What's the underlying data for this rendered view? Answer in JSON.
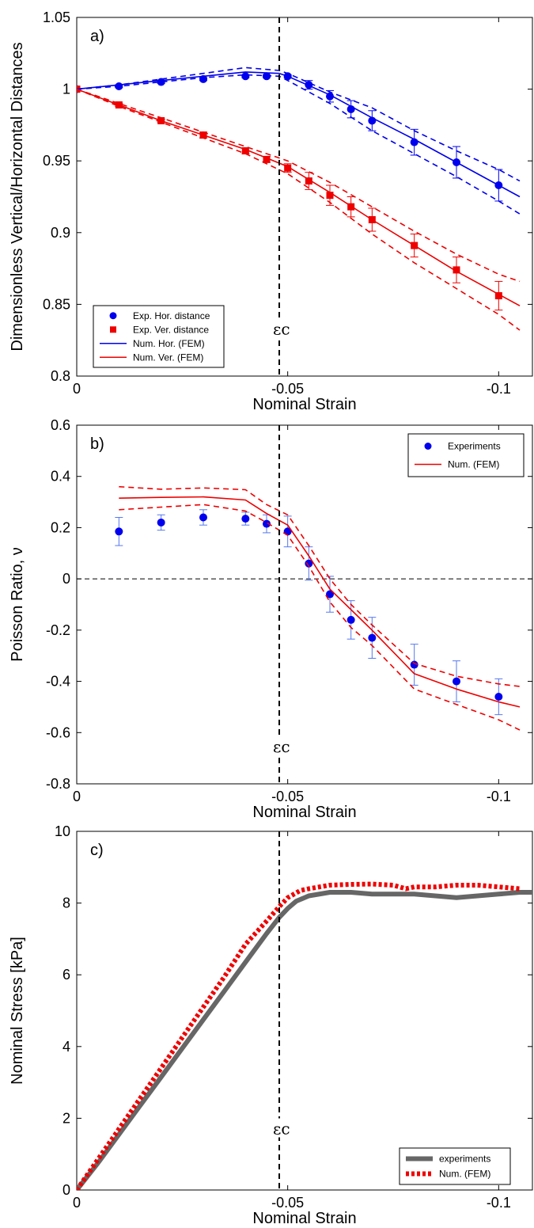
{
  "chart_data": [
    {
      "id": "a",
      "type": "line",
      "panel_label": "a)",
      "xlabel": "Nominal Strain",
      "ylabel": "Dimensionless Vertical/Horizontal Distances",
      "xlim": [
        0,
        -0.108
      ],
      "ylim": [
        0.8,
        1.05
      ],
      "x_ticks": [
        0,
        -0.05,
        -0.1
      ],
      "x_tick_labels": [
        "0",
        "-0.05",
        "-0.1"
      ],
      "y_ticks": [
        0.8,
        0.85,
        0.9,
        0.95,
        1.0,
        1.05
      ],
      "y_tick_labels": [
        "0.8",
        "0.85",
        "0.9",
        "0.95",
        "1",
        "1.05"
      ],
      "vline": {
        "x": -0.048,
        "label": "εc",
        "label_y": 0.83
      },
      "legend": {
        "placement": "bottom-left",
        "entries": [
          {
            "label": "Exp. Hor. distance",
            "color": "#0000ee",
            "kind": "circle"
          },
          {
            "label": "Exp. Ver. distance",
            "color": "#ee0000",
            "kind": "square"
          },
          {
            "label": "Num. Hor. (FEM)",
            "color": "#0000ee",
            "kind": "line"
          },
          {
            "label": "Num. Ver. (FEM)",
            "color": "#ee0000",
            "kind": "line"
          }
        ]
      },
      "series": [
        {
          "kind": "scatter",
          "marker": "circle",
          "color": "#0000ee",
          "x": [
            0,
            -0.01,
            -0.02,
            -0.03,
            -0.04,
            -0.045,
            -0.05,
            -0.055,
            -0.06,
            -0.065,
            -0.07,
            -0.08,
            -0.09,
            -0.1
          ],
          "y": [
            1.0,
            1.002,
            1.005,
            1.007,
            1.009,
            1.009,
            1.009,
            1.003,
            0.995,
            0.986,
            0.978,
            0.963,
            0.949,
            0.933
          ],
          "err": [
            0,
            0.001,
            0.001,
            0.001,
            0.001,
            0.001,
            0.001,
            0.003,
            0.004,
            0.006,
            0.007,
            0.009,
            0.011,
            0.011
          ]
        },
        {
          "kind": "scatter",
          "marker": "square",
          "color": "#ee0000",
          "x": [
            0,
            -0.01,
            -0.02,
            -0.03,
            -0.04,
            -0.045,
            -0.05,
            -0.055,
            -0.06,
            -0.065,
            -0.07,
            -0.08,
            -0.09,
            -0.1
          ],
          "y": [
            1.0,
            0.989,
            0.978,
            0.968,
            0.957,
            0.951,
            0.945,
            0.936,
            0.926,
            0.918,
            0.909,
            0.891,
            0.874,
            0.856
          ],
          "err": [
            0,
            0.001,
            0.001,
            0.002,
            0.002,
            0.002,
            0.003,
            0.006,
            0.007,
            0.007,
            0.008,
            0.008,
            0.009,
            0.01
          ]
        },
        {
          "kind": "line",
          "color": "#0000ee",
          "dash": false,
          "x": [
            0,
            -0.01,
            -0.02,
            -0.03,
            -0.04,
            -0.048,
            -0.05,
            -0.06,
            -0.07,
            -0.08,
            -0.09,
            -0.1,
            -0.105
          ],
          "y": [
            1.0,
            1.003,
            1.006,
            1.009,
            1.012,
            1.011,
            1.009,
            0.996,
            0.98,
            0.965,
            0.949,
            0.933,
            0.925
          ]
        },
        {
          "kind": "line",
          "color": "#0000ee",
          "dash": true,
          "x": [
            0,
            -0.01,
            -0.02,
            -0.03,
            -0.04,
            -0.048,
            -0.05,
            -0.06,
            -0.07,
            -0.08,
            -0.09,
            -0.1,
            -0.105
          ],
          "y": [
            1.0,
            1.003,
            1.007,
            1.011,
            1.015,
            1.013,
            1.011,
            0.998,
            0.987,
            0.971,
            0.957,
            0.944,
            0.936
          ]
        },
        {
          "kind": "line",
          "color": "#0000ee",
          "dash": true,
          "x": [
            0,
            -0.01,
            -0.02,
            -0.03,
            -0.04,
            -0.048,
            -0.05,
            -0.06,
            -0.07,
            -0.08,
            -0.09,
            -0.1,
            -0.105
          ],
          "y": [
            1.0,
            1.002,
            1.005,
            1.008,
            1.01,
            1.009,
            1.006,
            0.99,
            0.971,
            0.955,
            0.939,
            0.922,
            0.913
          ]
        },
        {
          "kind": "line",
          "color": "#ee0000",
          "dash": false,
          "x": [
            0,
            -0.01,
            -0.02,
            -0.03,
            -0.04,
            -0.05,
            -0.06,
            -0.07,
            -0.08,
            -0.09,
            -0.1,
            -0.105
          ],
          "y": [
            1.0,
            0.989,
            0.978,
            0.968,
            0.958,
            0.946,
            0.928,
            0.909,
            0.891,
            0.873,
            0.857,
            0.849
          ]
        },
        {
          "kind": "line",
          "color": "#ee0000",
          "dash": true,
          "x": [
            0,
            -0.01,
            -0.02,
            -0.03,
            -0.04,
            -0.05,
            -0.06,
            -0.07,
            -0.08,
            -0.09,
            -0.1,
            -0.105
          ],
          "y": [
            1.0,
            0.99,
            0.98,
            0.97,
            0.96,
            0.95,
            0.935,
            0.918,
            0.901,
            0.885,
            0.871,
            0.866
          ]
        },
        {
          "kind": "line",
          "color": "#ee0000",
          "dash": true,
          "x": [
            0,
            -0.01,
            -0.02,
            -0.03,
            -0.04,
            -0.05,
            -0.06,
            -0.07,
            -0.08,
            -0.09,
            -0.1,
            -0.105
          ],
          "y": [
            1.0,
            0.988,
            0.977,
            0.966,
            0.955,
            0.941,
            0.921,
            0.899,
            0.879,
            0.861,
            0.843,
            0.832
          ]
        }
      ]
    },
    {
      "id": "b",
      "type": "line",
      "panel_label": "b)",
      "xlabel": "Nominal Strain",
      "ylabel": "Poisson Ratio, ν",
      "xlim": [
        0,
        -0.108
      ],
      "ylim": [
        -0.8,
        0.6
      ],
      "x_ticks": [
        0,
        -0.05,
        -0.1
      ],
      "x_tick_labels": [
        "0",
        "-0.05",
        "-0.1"
      ],
      "y_ticks": [
        -0.8,
        -0.6,
        -0.4,
        -0.2,
        0,
        0.2,
        0.4,
        0.6
      ],
      "y_tick_labels": [
        "-0.8",
        "-0.6",
        "-0.4",
        "-0.2",
        "0",
        "0.2",
        "0.4",
        "0.6"
      ],
      "hline": {
        "y": 0
      },
      "vline": {
        "x": -0.048,
        "label": "εc",
        "label_y": -0.67
      },
      "legend": {
        "placement": "top-right",
        "entries": [
          {
            "label": "Experiments",
            "color": "#0000ee",
            "kind": "circle"
          },
          {
            "label": "Num. (FEM)",
            "color": "#ee0000",
            "kind": "line"
          }
        ]
      },
      "series": [
        {
          "kind": "scatter",
          "marker": "circle",
          "color": "#0000ee",
          "err_color": "#5577ee",
          "x": [
            -0.01,
            -0.02,
            -0.03,
            -0.04,
            -0.045,
            -0.05,
            -0.055,
            -0.06,
            -0.065,
            -0.07,
            -0.08,
            -0.09,
            -0.1
          ],
          "y": [
            0.185,
            0.22,
            0.24,
            0.235,
            0.215,
            0.185,
            0.06,
            -0.06,
            -0.16,
            -0.23,
            -0.335,
            -0.4,
            -0.46
          ],
          "err": [
            0.055,
            0.03,
            0.03,
            0.025,
            0.035,
            0.06,
            0.065,
            0.07,
            0.075,
            0.08,
            0.08,
            0.08,
            0.07
          ]
        },
        {
          "kind": "line",
          "color": "#ee0000",
          "dash": false,
          "x": [
            -0.01,
            -0.02,
            -0.03,
            -0.04,
            -0.045,
            -0.05,
            -0.055,
            -0.06,
            -0.065,
            -0.07,
            -0.08,
            -0.09,
            -0.1,
            -0.105
          ],
          "y": [
            0.315,
            0.318,
            0.32,
            0.308,
            0.255,
            0.21,
            0.09,
            -0.04,
            -0.12,
            -0.2,
            -0.37,
            -0.43,
            -0.48,
            -0.5
          ]
        },
        {
          "kind": "line",
          "color": "#ee0000",
          "dash": true,
          "x": [
            -0.01,
            -0.02,
            -0.03,
            -0.04,
            -0.045,
            -0.05,
            -0.055,
            -0.06,
            -0.065,
            -0.07,
            -0.08,
            -0.09,
            -0.1,
            -0.105
          ],
          "y": [
            0.36,
            0.35,
            0.355,
            0.348,
            0.29,
            0.25,
            0.13,
            0.0,
            -0.1,
            -0.18,
            -0.33,
            -0.38,
            -0.41,
            -0.42
          ]
        },
        {
          "kind": "line",
          "color": "#ee0000",
          "dash": true,
          "x": [
            -0.01,
            -0.02,
            -0.03,
            -0.04,
            -0.045,
            -0.05,
            -0.055,
            -0.06,
            -0.065,
            -0.07,
            -0.08,
            -0.09,
            -0.1,
            -0.105
          ],
          "y": [
            0.27,
            0.28,
            0.29,
            0.265,
            0.22,
            0.17,
            0.05,
            -0.09,
            -0.19,
            -0.26,
            -0.43,
            -0.49,
            -0.55,
            -0.59
          ]
        }
      ]
    },
    {
      "id": "c",
      "type": "line",
      "panel_label": "c)",
      "xlabel": "Nominal Strain",
      "ylabel": "Nominal Stress [kPa]",
      "xlim": [
        0,
        -0.108
      ],
      "ylim": [
        0,
        10
      ],
      "x_ticks": [
        0,
        -0.05,
        -0.1
      ],
      "x_tick_labels": [
        "0",
        "-0.05",
        "-0.1"
      ],
      "y_ticks": [
        0,
        2,
        4,
        6,
        8,
        10
      ],
      "y_tick_labels": [
        "0",
        "2",
        "4",
        "6",
        "8",
        "10"
      ],
      "vline": {
        "x": -0.048,
        "label": "εc",
        "label_y": 1.6
      },
      "legend": {
        "placement": "bottom-right",
        "entries": [
          {
            "label": "experiments",
            "color": "#666666",
            "kind": "thick-line"
          },
          {
            "label": "Num. (FEM)",
            "color": "#ee0000",
            "kind": "dotted-line"
          }
        ]
      },
      "series": [
        {
          "name": "experiments",
          "kind": "line",
          "color": "#666666",
          "width": 6,
          "x": [
            0,
            -0.005,
            -0.01,
            -0.015,
            -0.02,
            -0.025,
            -0.03,
            -0.035,
            -0.04,
            -0.045,
            -0.048,
            -0.05,
            -0.052,
            -0.055,
            -0.06,
            -0.065,
            -0.07,
            -0.075,
            -0.08,
            -0.085,
            -0.09,
            -0.095,
            -0.1,
            -0.105,
            -0.108
          ],
          "y": [
            0,
            0.75,
            1.55,
            2.35,
            3.15,
            3.95,
            4.75,
            5.55,
            6.35,
            7.15,
            7.6,
            7.85,
            8.05,
            8.2,
            8.3,
            8.3,
            8.25,
            8.25,
            8.25,
            8.2,
            8.15,
            8.2,
            8.25,
            8.3,
            8.3
          ]
        },
        {
          "name": "Num. (FEM)",
          "kind": "line",
          "color": "#ee0000",
          "width": 6,
          "dotted": true,
          "x": [
            0,
            -0.005,
            -0.01,
            -0.015,
            -0.02,
            -0.025,
            -0.03,
            -0.035,
            -0.04,
            -0.045,
            -0.048,
            -0.05,
            -0.053,
            -0.055,
            -0.06,
            -0.065,
            -0.07,
            -0.075,
            -0.078,
            -0.08,
            -0.085,
            -0.09,
            -0.095,
            -0.1,
            -0.105
          ],
          "y": [
            0,
            0.85,
            1.7,
            2.55,
            3.4,
            4.25,
            5.1,
            5.95,
            6.85,
            7.5,
            7.9,
            8.15,
            8.35,
            8.4,
            8.5,
            8.52,
            8.53,
            8.5,
            8.4,
            8.45,
            8.45,
            8.5,
            8.5,
            8.45,
            8.4
          ]
        }
      ]
    }
  ]
}
